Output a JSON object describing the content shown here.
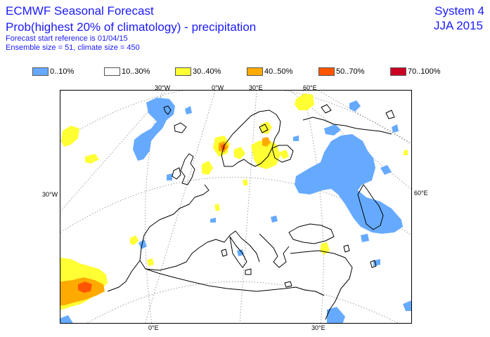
{
  "header": {
    "title": "ECMWF Seasonal Forecast",
    "subtitle": "Prob(highest 20% of climatology) - precipitation",
    "forecast_start": "Forecast start reference is 01/04/15",
    "ensemble": "Ensemble size = 51, climate size = 450",
    "system": "System 4",
    "period": "JJA 2015"
  },
  "legend": [
    {
      "label": "0..10%",
      "color": "#66aaff"
    },
    {
      "label": "10..30%",
      "color": "#ffffff"
    },
    {
      "label": "30..40%",
      "color": "#ffff33"
    },
    {
      "label": "40..50%",
      "color": "#ffaa00"
    },
    {
      "label": "50..70%",
      "color": "#ff5500"
    },
    {
      "label": "70..100%",
      "color": "#cc0022"
    }
  ],
  "coordinates": {
    "top": [
      "30°W",
      "0°W",
      "30°E",
      "60°E"
    ],
    "left": "30°W",
    "right": "60°E",
    "bottom": [
      "0°E",
      "30°E"
    ]
  }
}
